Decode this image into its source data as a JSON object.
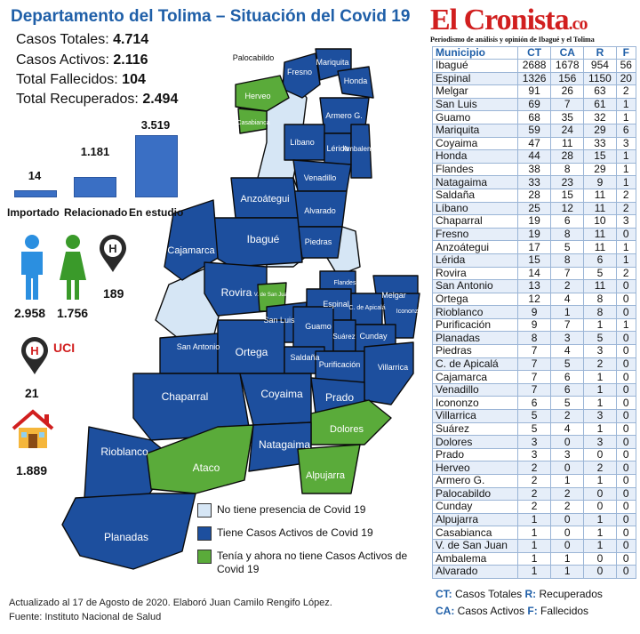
{
  "header": {
    "title": "Departamento del Tolima – Situación del Covid 19",
    "stats": [
      {
        "label": "Casos Totales: ",
        "value": "4.714"
      },
      {
        "label": "Casos Activos: ",
        "value": "2.116"
      },
      {
        "label": "Total Fallecidos: ",
        "value": "104"
      },
      {
        "label": "Total Recuperados: ",
        "value": "2.494"
      }
    ]
  },
  "source_chart": {
    "categories": [
      "Importado",
      "Relacionado",
      "En estudio"
    ],
    "values": [
      14,
      1181,
      3519
    ],
    "value_labels": [
      "14",
      "1.181",
      "3.519"
    ],
    "color": "#3a6fc4"
  },
  "people": {
    "male": "2.958",
    "female": "1.756",
    "hospital": "189",
    "uci_label": "UCI",
    "uci": "21",
    "home": "1.889",
    "male_color": "#2b8fe0",
    "female_color": "#3a9a2a",
    "hospital_color": "#d11f1f"
  },
  "map": {
    "colors": {
      "none": "#d6e6f5",
      "active": "#1d4f9e",
      "recovered": "#5aab3a"
    },
    "labels": [
      "Palocabildo",
      "Fresno",
      "Mariquita",
      "Honda",
      "Herveo",
      "Casabianca",
      "Armero G.",
      "Líbano",
      "Lérida",
      "Ambalema",
      "Venadillo",
      "Anzoátegui",
      "Alvarado",
      "Ibagué",
      "Cajamarca",
      "Piedras",
      "Rovira",
      "V. de San Juan",
      "Flandes",
      "Melgar",
      "Espinal",
      "C. de Apicalá",
      "Icononzo",
      "San Luis",
      "Guamo",
      "Cunday",
      "Suárez",
      "San Antonio",
      "Ortega",
      "Saldaña",
      "Purificación",
      "Villarrica",
      "Chaparral",
      "Coyaima",
      "Prado",
      "Dolores",
      "Rioblanco",
      "Ataco",
      "Natagaima",
      "Alpujarra",
      "Planadas"
    ]
  },
  "legend": [
    {
      "label": "No tiene presencia de Covid 19",
      "color": "#d6e6f5"
    },
    {
      "label": "Tiene Casos Activos de Covid 19",
      "color": "#1d4f9e"
    },
    {
      "label": "Tenía y ahora no tiene Casos Activos de Covid 19",
      "color": "#5aab3a"
    }
  ],
  "footer": {
    "line1": "Actualizado al 17 de Agosto de 2020. Elaboró Juan Camilo Rengifo López.",
    "line2": "Fuente: Instituto Nacional de Salud"
  },
  "masthead": {
    "name": "El Cronista",
    "suffix": ".co",
    "tagline": "Periodismo de análisis y opinión de Ibagué y el Tolima"
  },
  "table": {
    "headers": [
      "Municipio",
      "CT",
      "CA",
      "R",
      "F"
    ],
    "rows": [
      [
        "Ibagué",
        "2688",
        "1678",
        "954",
        "56"
      ],
      [
        "Espinal",
        "1326",
        "156",
        "1150",
        "20"
      ],
      [
        "Melgar",
        "91",
        "26",
        "63",
        "2"
      ],
      [
        "San Luis",
        "69",
        "7",
        "61",
        "1"
      ],
      [
        "Guamo",
        "68",
        "35",
        "32",
        "1"
      ],
      [
        "Mariquita",
        "59",
        "24",
        "29",
        "6"
      ],
      [
        "Coyaima",
        "47",
        "11",
        "33",
        "3"
      ],
      [
        "Honda",
        "44",
        "28",
        "15",
        "1"
      ],
      [
        "Flandes",
        "38",
        "8",
        "29",
        "1"
      ],
      [
        "Natagaima",
        "33",
        "23",
        "9",
        "1"
      ],
      [
        "Saldaña",
        "28",
        "15",
        "11",
        "2"
      ],
      [
        "Líbano",
        "25",
        "12",
        "11",
        "2"
      ],
      [
        "Chaparral",
        "19",
        "6",
        "10",
        "3"
      ],
      [
        "Fresno",
        "19",
        "8",
        "11",
        "0"
      ],
      [
        "Anzoátegui",
        "17",
        "5",
        "11",
        "1"
      ],
      [
        "Lérida",
        "15",
        "8",
        "6",
        "1"
      ],
      [
        "Rovira",
        "14",
        "7",
        "5",
        "2"
      ],
      [
        "San Antonio",
        "13",
        "2",
        "11",
        "0"
      ],
      [
        "Ortega",
        "12",
        "4",
        "8",
        "0"
      ],
      [
        "Rioblanco",
        "9",
        "1",
        "8",
        "0"
      ],
      [
        "Purificación",
        "9",
        "7",
        "1",
        "1"
      ],
      [
        "Planadas",
        "8",
        "3",
        "5",
        "0"
      ],
      [
        "Piedras",
        "7",
        "4",
        "3",
        "0"
      ],
      [
        "C. de Apicalá",
        "7",
        "5",
        "2",
        "0"
      ],
      [
        "Cajamarca",
        "7",
        "6",
        "1",
        "0"
      ],
      [
        "Venadillo",
        "7",
        "6",
        "1",
        "0"
      ],
      [
        "Icononzo",
        "6",
        "5",
        "1",
        "0"
      ],
      [
        "Villarrica",
        "5",
        "2",
        "3",
        "0"
      ],
      [
        "Suárez",
        "5",
        "4",
        "1",
        "0"
      ],
      [
        "Dolores",
        "3",
        "0",
        "3",
        "0"
      ],
      [
        "Prado",
        "3",
        "3",
        "0",
        "0"
      ],
      [
        "Herveo",
        "2",
        "0",
        "2",
        "0"
      ],
      [
        "Armero G.",
        "2",
        "1",
        "1",
        "0"
      ],
      [
        "Palocabildo",
        "2",
        "2",
        "0",
        "0"
      ],
      [
        "Cunday",
        "2",
        "2",
        "0",
        "0"
      ],
      [
        "Alpujarra",
        "1",
        "0",
        "1",
        "0"
      ],
      [
        "Casabianca",
        "1",
        "0",
        "1",
        "0"
      ],
      [
        "V. de San Juan",
        "1",
        "0",
        "1",
        "0"
      ],
      [
        "Ambalema",
        "1",
        "1",
        "0",
        "0"
      ],
      [
        "Alvarado",
        "1",
        "1",
        "0",
        "0"
      ]
    ]
  },
  "key": [
    {
      "abbr": "CT:",
      "text": " Casos Totales ",
      "abbr2": "R:",
      "text2": " Recuperados"
    },
    {
      "abbr": "CA:",
      "text": " Casos Activos ",
      "abbr2": "F:",
      "text2": " Fallecidos"
    }
  ]
}
